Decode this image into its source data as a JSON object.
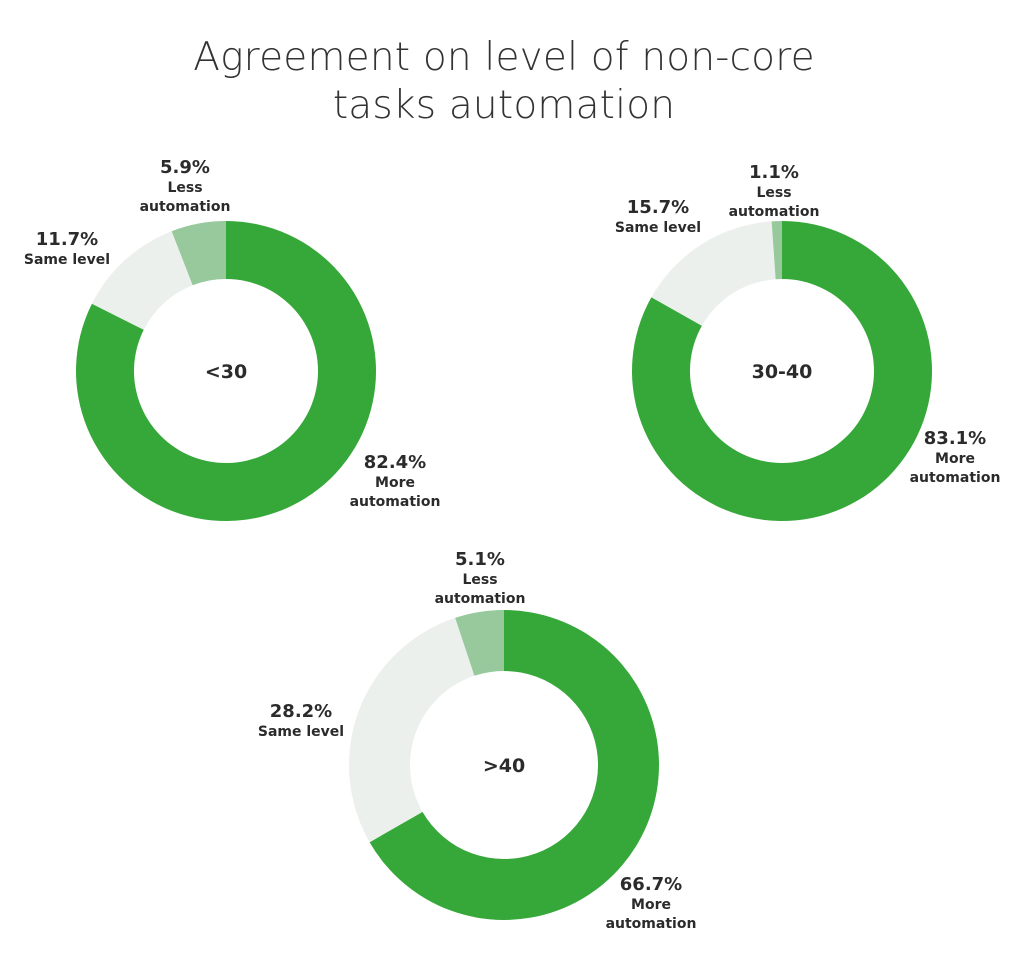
{
  "title": {
    "line1": "Agreement on level of non-core",
    "line2": "tasks automation"
  },
  "colors": {
    "more_automation": "#36a83a",
    "same_level": "#ebf0ec",
    "less_automation": "#98c99d"
  },
  "chart_data": [
    {
      "type": "pie",
      "center_label": "<30",
      "slices": [
        {
          "label": "More automation",
          "label_lines": [
            "More",
            "automation"
          ],
          "value": 82.4,
          "value_text": "82.4%"
        },
        {
          "label": "Same level",
          "label_lines": [
            "Same level"
          ],
          "value": 11.7,
          "value_text": "11.7%"
        },
        {
          "label": "Less automation",
          "label_lines": [
            "Less",
            "automation"
          ],
          "value": 5.9,
          "value_text": "5.9%"
        }
      ]
    },
    {
      "type": "pie",
      "center_label": "30-40",
      "slices": [
        {
          "label": "More automation",
          "label_lines": [
            "More",
            "automation"
          ],
          "value": 83.1,
          "value_text": "83.1%"
        },
        {
          "label": "Same level",
          "label_lines": [
            "Same level"
          ],
          "value": 15.7,
          "value_text": "15.7%"
        },
        {
          "label": "Less automation",
          "label_lines": [
            "Less",
            "automation"
          ],
          "value": 1.1,
          "value_text": "1.1%"
        }
      ]
    },
    {
      "type": "pie",
      "center_label": ">40",
      "slices": [
        {
          "label": "More automation",
          "label_lines": [
            "More",
            "automation"
          ],
          "value": 66.7,
          "value_text": "66.7%"
        },
        {
          "label": "Same level",
          "label_lines": [
            "Same level"
          ],
          "value": 28.2,
          "value_text": "28.2%"
        },
        {
          "label": "Less automation",
          "label_lines": [
            "Less",
            "automation"
          ],
          "value": 5.1,
          "value_text": "5.1%"
        }
      ]
    }
  ]
}
